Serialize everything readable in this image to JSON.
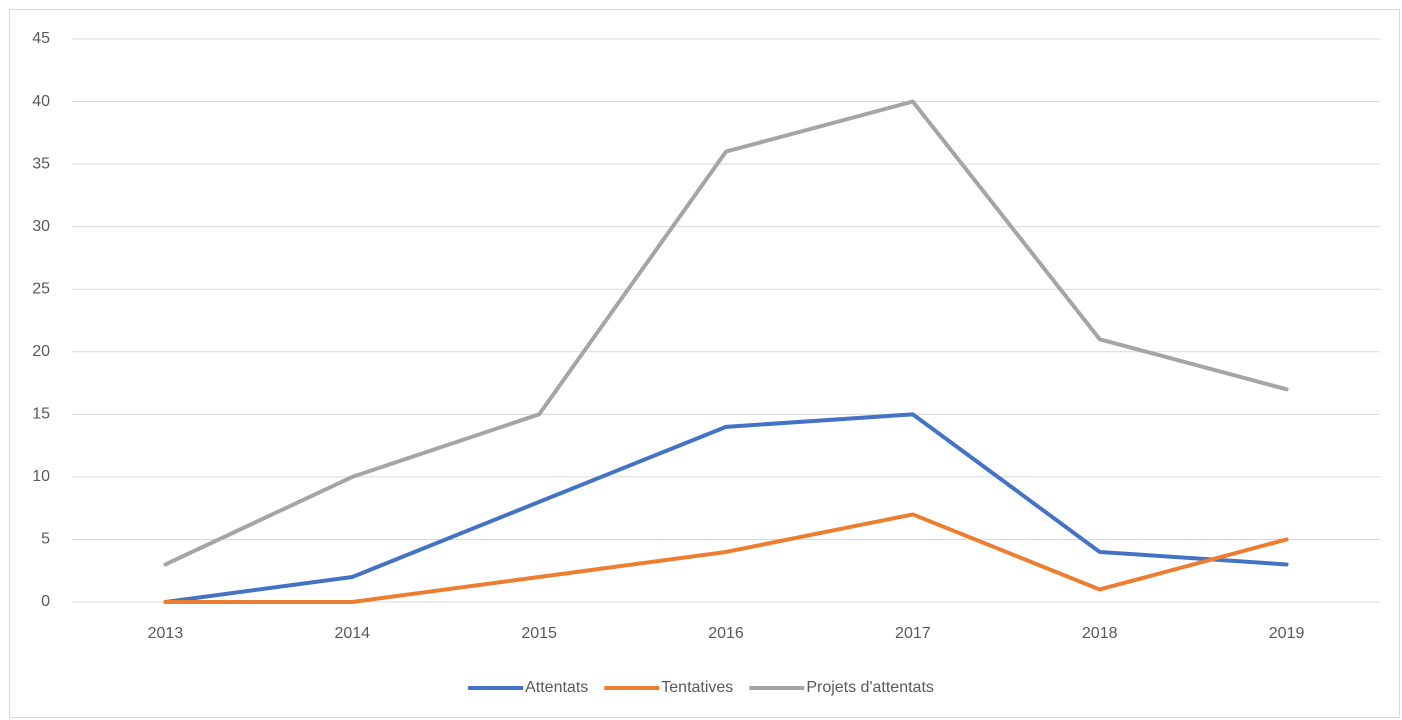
{
  "chart_data": {
    "type": "line",
    "categories": [
      "2013",
      "2014",
      "2015",
      "2016",
      "2017",
      "2018",
      "2019"
    ],
    "series": [
      {
        "name": "Attentats",
        "color": "#4472c4",
        "values": [
          0,
          2,
          8,
          14,
          15,
          4,
          3
        ]
      },
      {
        "name": "Tentatives",
        "color": "#ed7d31",
        "values": [
          0,
          0,
          2,
          4,
          7,
          1,
          5
        ]
      },
      {
        "name": "Projets d'attentats",
        "color": "#a5a5a5",
        "values": [
          3,
          10,
          15,
          36,
          40,
          21,
          17
        ]
      }
    ],
    "ylim": [
      0,
      45
    ],
    "yticks": [
      0,
      5,
      10,
      15,
      20,
      25,
      30,
      35,
      40,
      45
    ],
    "grid": true,
    "legend": "bottom"
  }
}
